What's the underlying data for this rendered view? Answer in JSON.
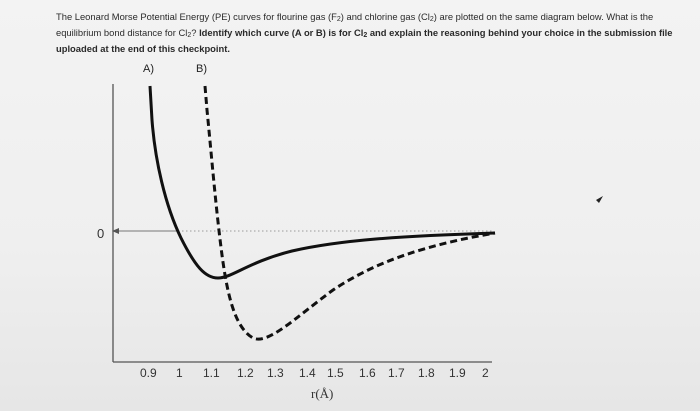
{
  "prompt": {
    "seg1": "The Leonard Morse Potential Energy (PE) curves for flourine gas (F",
    "seg1_sub": "2",
    "seg2": ") and chlorine gas (Cl",
    "seg2_sub": "2",
    "seg3": ") are plotted on the same diagram below. What is the equilibrium bond distance for Cl",
    "seg3_sub": "2",
    "seg4": "? ",
    "bold1": "Identify which curve (A or B) is for Cl",
    "bold1_sub": "2",
    "bold2": " and explain the reasoning behind your choice in the submission file uploaded at the end of this checkpoint."
  },
  "figure": {
    "curve_a_label": "A)",
    "curve_b_label": "B)",
    "zero_label": "0",
    "x_ticks": [
      "0.9",
      "1",
      "1.1",
      "1.2",
      "1.3",
      "1.4",
      "1.5",
      "1.6",
      "1.7",
      "1.8",
      "1.9",
      "2"
    ],
    "x_axis_title": "r(Å)"
  },
  "chart_data": {
    "type": "line",
    "xlabel": "r(Å)",
    "ylabel": "",
    "x_ticks": [
      0.9,
      1.0,
      1.1,
      1.2,
      1.3,
      1.4,
      1.5,
      1.6,
      1.7,
      1.8,
      1.9,
      2.0
    ],
    "series": [
      {
        "name": "A)",
        "style": "solid",
        "x": [
          0.9,
          0.95,
          1.0,
          1.05,
          1.1,
          1.2,
          1.3,
          1.5,
          1.7,
          2.0
        ],
        "y": [
          3.3,
          1.4,
          0.1,
          -0.75,
          -0.95,
          -0.7,
          -0.5,
          -0.3,
          -0.12,
          -0.05
        ]
      },
      {
        "name": "B)",
        "style": "dashed",
        "x": [
          1.07,
          1.09,
          1.12,
          1.15,
          1.2,
          1.25,
          1.35,
          1.5,
          1.7,
          2.0
        ],
        "y": [
          3.1,
          1.0,
          -0.9,
          -1.8,
          -2.25,
          -2.0,
          -1.4,
          -0.7,
          -0.3,
          -0.05
        ]
      }
    ],
    "annotations": [
      "0"
    ],
    "grid": false
  }
}
